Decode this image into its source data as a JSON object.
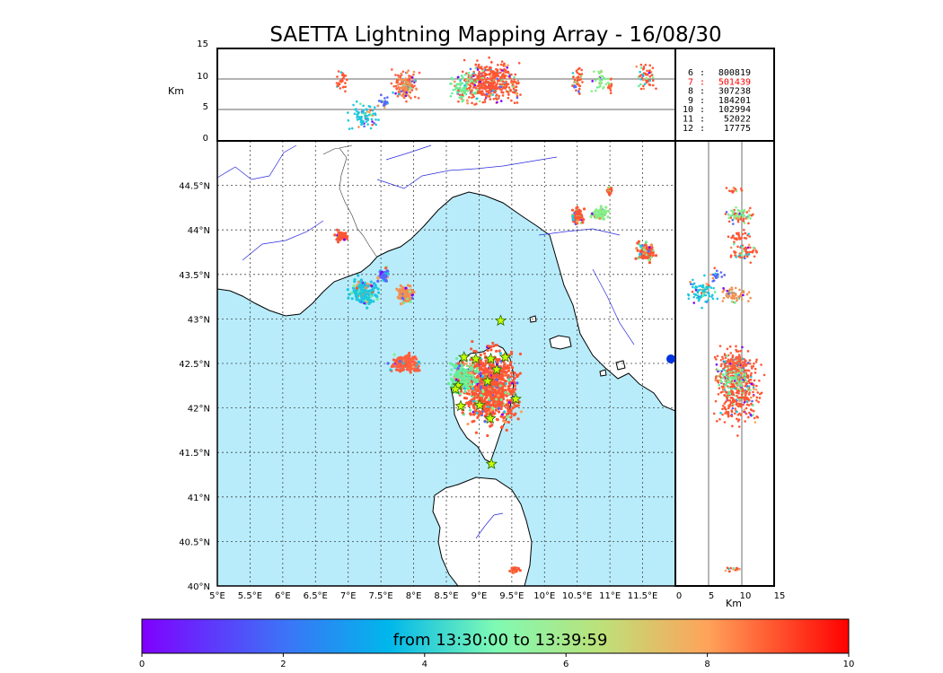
{
  "title": "SAETTA Lightning Mapping Array - 16/08/30",
  "colors": {
    "sea": "#b8ecfb",
    "land": "#ffffff",
    "coast": "#000000",
    "rivers": "#2a2adf",
    "borders": "#333333",
    "station_star": "#c8ff00",
    "station_star_edge": "#226600"
  },
  "map": {
    "lon_range": [
      5,
      12
    ],
    "lat_range": [
      40,
      45
    ],
    "lon_ticks": [
      "5°E",
      "5.5°E",
      "6°E",
      "6.5°E",
      "7°E",
      "7.5°E",
      "8°E",
      "8.5°E",
      "9°E",
      "9.5°E",
      "10°E",
      "10.5°E",
      "11°E",
      "11.5°E"
    ],
    "lat_ticks": [
      "40°N",
      "40.5°N",
      "41°N",
      "41.5°N",
      "42°N",
      "42.5°N",
      "43°N",
      "43.5°N",
      "44°N",
      "44.5°N"
    ]
  },
  "altitude_panel": {
    "ylabel": "Km",
    "y_range": [
      0,
      15
    ],
    "y_ticks": [
      "0",
      "5",
      "10",
      "15"
    ]
  },
  "side_panel": {
    "xlabel": "Km",
    "x_range": [
      0,
      15
    ],
    "x_ticks": [
      "0",
      "5",
      "10",
      "15"
    ]
  },
  "station_counts": [
    {
      "station": "6",
      "count": "800819",
      "highlight": false
    },
    {
      "station": "7",
      "count": "501439",
      "highlight": true
    },
    {
      "station": "8",
      "count": "307238",
      "highlight": false
    },
    {
      "station": "9",
      "count": "184201",
      "highlight": false
    },
    {
      "station": "10",
      "count": "102994",
      "highlight": false
    },
    {
      "station": "11",
      "count": "52022",
      "highlight": false
    },
    {
      "station": "12",
      "count": "17775",
      "highlight": false
    }
  ],
  "highlight_color": "#ff0000",
  "colorbar": {
    "label": "from 13:30:00 to 13:39:59",
    "range": [
      0,
      10
    ],
    "ticks": [
      "0",
      "2",
      "4",
      "6",
      "8",
      "10"
    ]
  },
  "lma_stations": [
    [
      8.77,
      42.57
    ],
    [
      8.95,
      42.55
    ],
    [
      9.18,
      42.55
    ],
    [
      9.4,
      42.57
    ],
    [
      9.33,
      42.98
    ],
    [
      8.68,
      42.25
    ],
    [
      8.72,
      42.02
    ],
    [
      9.01,
      42.03
    ],
    [
      9.13,
      42.3
    ],
    [
      9.27,
      42.43
    ],
    [
      9.56,
      42.1
    ],
    [
      9.17,
      41.88
    ],
    [
      9.19,
      41.37
    ],
    [
      8.64,
      42.21
    ]
  ],
  "lightning_clusters": [
    {
      "lon": 9.18,
      "lat": 42.22,
      "rx": 0.42,
      "ry": 0.45,
      "alt": 9.5,
      "alt_spread": 4.5,
      "color": "#ff5533",
      "n": 900
    },
    {
      "lon": 8.75,
      "lat": 42.35,
      "rx": 0.22,
      "ry": 0.18,
      "alt": 9.0,
      "alt_spread": 3.5,
      "color": "#66ee99",
      "n": 200
    },
    {
      "lon": 7.88,
      "lat": 42.5,
      "rx": 0.22,
      "ry": 0.1,
      "alt": 9.0,
      "alt_spread": 3.0,
      "color": "#ff6040",
      "n": 220
    },
    {
      "lon": 7.87,
      "lat": 43.28,
      "rx": 0.12,
      "ry": 0.1,
      "alt": 9.0,
      "alt_spread": 3.0,
      "color": "#f29050",
      "n": 120
    },
    {
      "lon": 7.25,
      "lat": 43.3,
      "rx": 0.25,
      "ry": 0.15,
      "alt": 4.0,
      "alt_spread": 3.0,
      "color": "#1cc7dd",
      "n": 160
    },
    {
      "lon": 7.55,
      "lat": 43.5,
      "rx": 0.1,
      "ry": 0.08,
      "alt": 6.0,
      "alt_spread": 2.0,
      "color": "#5566ff",
      "n": 50
    },
    {
      "lon": 6.9,
      "lat": 43.93,
      "rx": 0.1,
      "ry": 0.06,
      "alt": 10.0,
      "alt_spread": 2.5,
      "color": "#ff5533",
      "n": 60
    },
    {
      "lon": 10.5,
      "lat": 44.15,
      "rx": 0.1,
      "ry": 0.1,
      "alt": 9.5,
      "alt_spread": 3.0,
      "color": "#ff5533",
      "n": 90
    },
    {
      "lon": 10.85,
      "lat": 44.18,
      "rx": 0.12,
      "ry": 0.08,
      "alt": 10.0,
      "alt_spread": 3.0,
      "color": "#88ee88",
      "n": 70
    },
    {
      "lon": 11.55,
      "lat": 43.75,
      "rx": 0.15,
      "ry": 0.12,
      "alt": 10.5,
      "alt_spread": 3.0,
      "color": "#ff5533",
      "n": 110
    },
    {
      "lon": 11.0,
      "lat": 44.45,
      "rx": 0.05,
      "ry": 0.05,
      "alt": 9.0,
      "alt_spread": 2.0,
      "color": "#ff5533",
      "n": 25
    },
    {
      "lon": 9.55,
      "lat": 40.18,
      "rx": 0.08,
      "ry": 0.03,
      "alt": 9.0,
      "alt_spread": 2.0,
      "color": "#ff5533",
      "n": 30
    }
  ]
}
